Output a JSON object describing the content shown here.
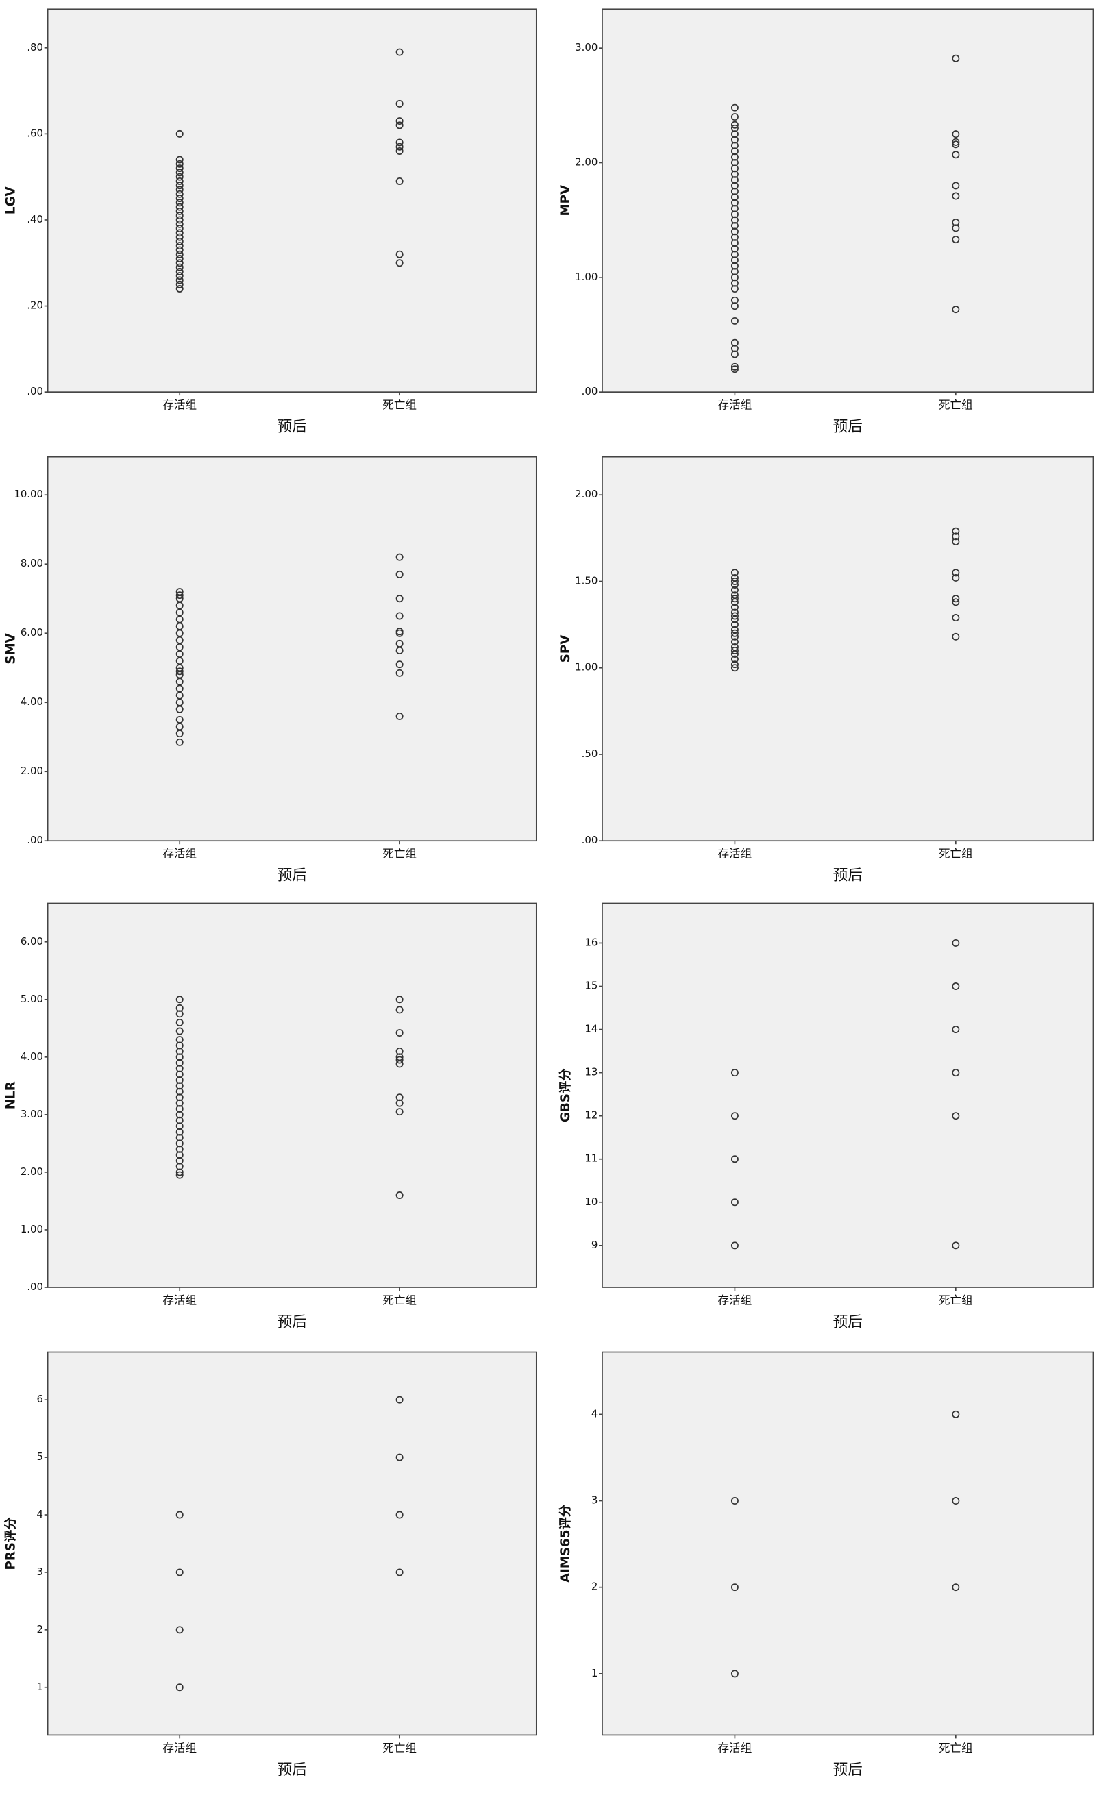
{
  "chart_data": [
    {
      "type": "scatter",
      "y_label": "LGV",
      "x_label": "预后",
      "categories": [
        "存活组",
        "死亡组"
      ],
      "values": [
        [
          0.6,
          0.54,
          0.53,
          0.52,
          0.51,
          0.5,
          0.49,
          0.48,
          0.47,
          0.46,
          0.45,
          0.44,
          0.43,
          0.42,
          0.41,
          0.4,
          0.39,
          0.38,
          0.37,
          0.36,
          0.35,
          0.34,
          0.33,
          0.32,
          0.31,
          0.3,
          0.29,
          0.28,
          0.27,
          0.26,
          0.25,
          0.24
        ],
        [
          0.79,
          0.67,
          0.63,
          0.62,
          0.58,
          0.57,
          0.56,
          0.49,
          0.32,
          0.3
        ]
      ],
      "ylim": [
        0,
        0.89
      ],
      "yticks": [
        {
          "value": 0,
          "label": ".00"
        },
        {
          "value": 0.2,
          "label": ".20"
        },
        {
          "value": 0.4,
          "label": ".40"
        },
        {
          "value": 0.6,
          "label": ".60"
        },
        {
          "value": 0.8,
          "label": ".80"
        }
      ]
    },
    {
      "type": "scatter",
      "y_label": "MPV",
      "x_label": "预后",
      "categories": [
        "存活组",
        "死亡组"
      ],
      "values": [
        [
          2.48,
          2.4,
          2.33,
          2.3,
          2.25,
          2.2,
          2.15,
          2.1,
          2.05,
          2.0,
          1.95,
          1.9,
          1.85,
          1.8,
          1.75,
          1.7,
          1.65,
          1.6,
          1.55,
          1.5,
          1.45,
          1.4,
          1.35,
          1.3,
          1.25,
          1.2,
          1.15,
          1.1,
          1.05,
          1.0,
          0.95,
          0.9,
          0.8,
          0.75,
          0.62,
          0.43,
          0.38,
          0.33,
          0.22,
          0.2
        ],
        [
          2.91,
          2.25,
          2.18,
          2.16,
          2.07,
          1.8,
          1.71,
          1.48,
          1.43,
          1.33,
          0.72
        ]
      ],
      "ylim": [
        0,
        3.34
      ],
      "yticks": [
        {
          "value": 0,
          "label": ".00"
        },
        {
          "value": 1,
          "label": "1.00"
        },
        {
          "value": 2,
          "label": "2.00"
        },
        {
          "value": 3,
          "label": "3.00"
        }
      ]
    },
    {
      "type": "scatter",
      "y_label": "SMV",
      "x_label": "预后",
      "categories": [
        "存活组",
        "死亡组"
      ],
      "values": [
        [
          7.2,
          7.1,
          7.0,
          6.8,
          6.6,
          6.4,
          6.2,
          6.0,
          5.8,
          5.6,
          5.4,
          5.2,
          5.0,
          4.9,
          4.8,
          4.6,
          4.4,
          4.2,
          4.0,
          3.8,
          3.5,
          3.3,
          3.1,
          2.85
        ],
        [
          8.2,
          7.7,
          7.0,
          6.5,
          6.05,
          6.0,
          5.7,
          5.5,
          5.1,
          4.85,
          3.6
        ]
      ],
      "ylim": [
        0,
        11.1
      ],
      "yticks": [
        {
          "value": 0,
          "label": ".00"
        },
        {
          "value": 2,
          "label": "2.00"
        },
        {
          "value": 4,
          "label": "4.00"
        },
        {
          "value": 6,
          "label": "6.00"
        },
        {
          "value": 8,
          "label": "8.00"
        },
        {
          "value": 10,
          "label": "10.00"
        }
      ]
    },
    {
      "type": "scatter",
      "y_label": "SPV",
      "x_label": "预后",
      "categories": [
        "存活组",
        "死亡组"
      ],
      "values": [
        [
          1.55,
          1.52,
          1.5,
          1.48,
          1.45,
          1.42,
          1.4,
          1.38,
          1.35,
          1.32,
          1.3,
          1.28,
          1.25,
          1.22,
          1.2,
          1.18,
          1.15,
          1.12,
          1.1,
          1.08,
          1.05,
          1.02,
          1.0
        ],
        [
          1.79,
          1.76,
          1.73,
          1.55,
          1.52,
          1.4,
          1.38,
          1.29,
          1.18
        ]
      ],
      "ylim": [
        0,
        2.22
      ],
      "yticks": [
        {
          "value": 0,
          "label": ".00"
        },
        {
          "value": 0.5,
          "label": ".50"
        },
        {
          "value": 1,
          "label": "1.00"
        },
        {
          "value": 1.5,
          "label": "1.50"
        },
        {
          "value": 2,
          "label": "2.00"
        }
      ]
    },
    {
      "type": "scatter",
      "y_label": "NLR",
      "x_label": "预后",
      "categories": [
        "存活组",
        "死亡组"
      ],
      "values": [
        [
          5.0,
          4.85,
          4.75,
          4.6,
          4.45,
          4.3,
          4.2,
          4.1,
          4.0,
          3.9,
          3.8,
          3.7,
          3.6,
          3.5,
          3.4,
          3.3,
          3.2,
          3.1,
          3.0,
          2.9,
          2.8,
          2.7,
          2.6,
          2.5,
          2.4,
          2.3,
          2.2,
          2.1,
          2.0,
          1.95
        ],
        [
          5.0,
          4.82,
          4.42,
          4.1,
          4.0,
          3.95,
          3.88,
          3.3,
          3.2,
          3.05,
          1.6
        ]
      ],
      "ylim": [
        0,
        6.67
      ],
      "yticks": [
        {
          "value": 0,
          "label": ".00"
        },
        {
          "value": 1,
          "label": "1.00"
        },
        {
          "value": 2,
          "label": "2.00"
        },
        {
          "value": 3,
          "label": "3.00"
        },
        {
          "value": 4,
          "label": "4.00"
        },
        {
          "value": 5,
          "label": "5.00"
        },
        {
          "value": 6,
          "label": "6.00"
        }
      ]
    },
    {
      "type": "scatter",
      "y_label": "GBS评分",
      "x_label": "预后",
      "categories": [
        "存活组",
        "死亡组"
      ],
      "values": [
        [
          13,
          12,
          11,
          10,
          9
        ],
        [
          16,
          15,
          14,
          13,
          12,
          9
        ]
      ],
      "ylim": [
        8.03,
        16.92
      ],
      "yticks": [
        9,
        10,
        11,
        12,
        13,
        14,
        15,
        16
      ]
    },
    {
      "type": "scatter",
      "y_label": "PRS评分",
      "x_label": "预后",
      "categories": [
        "存活组",
        "死亡组"
      ],
      "values": [
        [
          4,
          3,
          2,
          1
        ],
        [
          6,
          5,
          4,
          3
        ]
      ],
      "ylim": [
        0.17,
        6.83
      ],
      "yticks": [
        1,
        2,
        3,
        4,
        5,
        6
      ]
    },
    {
      "type": "scatter",
      "y_label": "AIMS65评分",
      "x_label": "预后",
      "categories": [
        "存活组",
        "死亡组"
      ],
      "values": [
        [
          3,
          2,
          1
        ],
        [
          4,
          3,
          2
        ]
      ],
      "ylim": [
        0.29,
        4.72
      ],
      "yticks": [
        1,
        2,
        3,
        4
      ]
    }
  ]
}
